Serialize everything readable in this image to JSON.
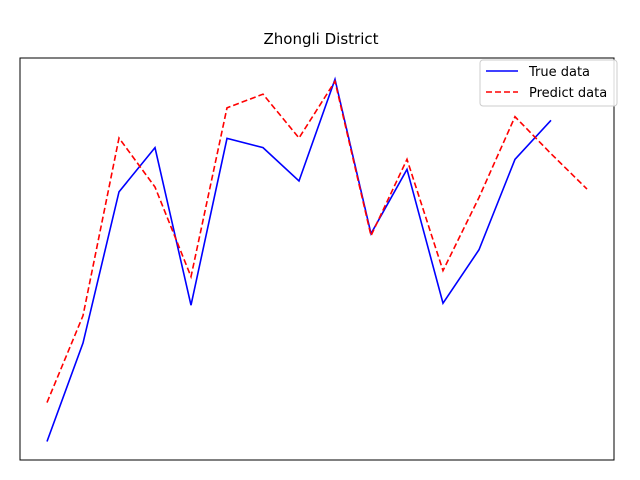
{
  "chart_data": {
    "type": "line",
    "title": "Zhongli District",
    "xlabel": "",
    "ylabel": "",
    "x_ticks_visible": false,
    "y_ticks_visible": false,
    "grid": false,
    "x": [
      0,
      1,
      2,
      3,
      4,
      5,
      6,
      7,
      8,
      9,
      10,
      11,
      12,
      13,
      14,
      15
    ],
    "xlim": [
      -0.75,
      15.75
    ],
    "ylim": [
      0,
      100
    ],
    "legend": {
      "placement": "top-right"
    },
    "series": [
      {
        "name": "True data",
        "color": "#0000ff",
        "dash": "solid",
        "x": [
          0,
          1,
          2,
          3,
          4,
          5,
          6,
          7,
          8,
          9,
          10,
          11,
          12,
          13,
          14
        ],
        "values": [
          4.6,
          29.1,
          66.7,
          77.7,
          38.5,
          80.0,
          77.7,
          69.4,
          94.7,
          56.3,
          72.3,
          39.0,
          52.3,
          74.8,
          84.5
        ]
      },
      {
        "name": "Predict data",
        "color": "#ff0000",
        "dash": "dashed",
        "x": [
          0,
          1,
          2,
          3,
          4,
          5,
          6,
          7,
          8,
          9,
          10,
          11,
          12,
          13,
          14,
          15
        ],
        "values": [
          14.3,
          35.9,
          80.1,
          67.9,
          45.6,
          87.6,
          91.0,
          80.1,
          94.2,
          55.8,
          74.8,
          47.1,
          65.3,
          85.4,
          76.2,
          67.4
        ]
      }
    ]
  }
}
